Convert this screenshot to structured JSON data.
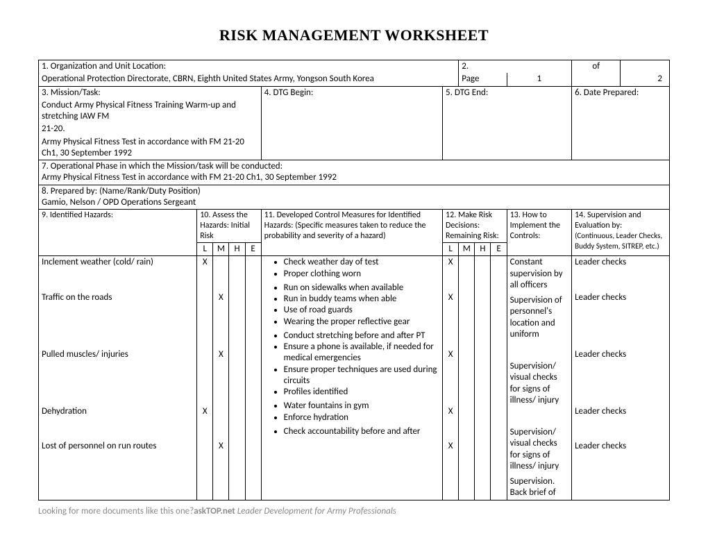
{
  "title": "RISK MANAGEMENT WORKSHEET",
  "labels": {
    "b1": "1.  Organization and Unit Location:",
    "b2": "2.",
    "b2_of": "of",
    "b2_page": "Page",
    "b3": "3.  Mission/Task:",
    "b4": "4.  DTG Begin:",
    "b5": "5.  DTG End:",
    "b6": "6.  Date Prepared:",
    "b7": "7.  Operational Phase in which the Mission/task will be conducted:",
    "b8": "8.  Prepared by: (Name/Rank/Duty Position)",
    "b9": "9.  Identified Hazards:",
    "b10": "10. Assess the Hazards: Initial Risk",
    "b11": "11.  Developed Control Measures for Identified Hazards:   (Specific measures taken to reduce the probability and severity of a hazard)",
    "b12": "12. Make Risk Decisions: Remaining Risk:",
    "b13": "13. How to Implement the Controls:",
    "b14l1": "14.  Supervision and Evaluation by:",
    "b14l2": "(Continuous, Leader Checks, Buddy System, SITREP, etc.)",
    "L": "L",
    "M": "M",
    "H": "H",
    "E": "E"
  },
  "values": {
    "org": "Operational Protection Directorate, CBRN, Eighth United States Army, Yongson South Korea",
    "page_cur": "1",
    "page_total": "2",
    "mission": "Conduct Army Physical Fitness Training Warm-up and stretching IAW FM 21-20.\nArmy Physical Fitness Test in accordance with FM 21-20 Ch1, 30 September 1992",
    "dtg_begin": "",
    "dtg_end": "",
    "date_prepared": "",
    "phase": "Army Physical Fitness Test in accordance with FM 21-20 Ch1, 30 September 1992",
    "prepared_by": "Gamio, Nelson / OPD Operations Sergeant"
  },
  "rows": [
    {
      "hazard": "Inclement weather (cold/ rain)",
      "init": "L",
      "measures": [
        "Check weather day of test",
        "Proper clothing worn"
      ],
      "remain": "L",
      "controls": "Constant supervision by all officers",
      "supervision": "Leader checks"
    },
    {
      "hazard": "Traffic on the roads",
      "init": "M",
      "measures": [
        "Run on sidewalks when available",
        "Run in buddy teams when able",
        "Use of road guards",
        "Wearing the proper reflective gear"
      ],
      "remain": "L",
      "controls": "Supervision of personnel's location and uniform",
      "supervision": "Leader checks"
    },
    {
      "hazard": "Pulled muscles/ injuries",
      "init": "M",
      "measures": [
        "Conduct stretching before and after PT",
        "Ensure a phone is available, if needed for medical emergencies",
        "Ensure proper techniques are used during circuits",
        "Profiles identified"
      ],
      "remain": "L",
      "controls": "Supervision/ visual checks for signs of illness/ injury",
      "supervision": "Leader checks"
    },
    {
      "hazard": "Dehydration",
      "init": "L",
      "measures": [
        "Water fountains in gym",
        "Enforce hydration"
      ],
      "remain": "L",
      "controls": "Supervision/ visual checks for signs of illness/ injury",
      "supervision": "Leader checks"
    },
    {
      "hazard": "Lost of personnel on run routes",
      "init": "M",
      "measures": [
        "Check accountability before and after"
      ],
      "remain": "L",
      "controls": "Supervision. Back brief of",
      "supervision": "Leader checks"
    }
  ],
  "footer": {
    "left": "Looking for more documents like this one?",
    "bold": "askTOP.net",
    "italic": " Leader Development for Army Professionals"
  }
}
